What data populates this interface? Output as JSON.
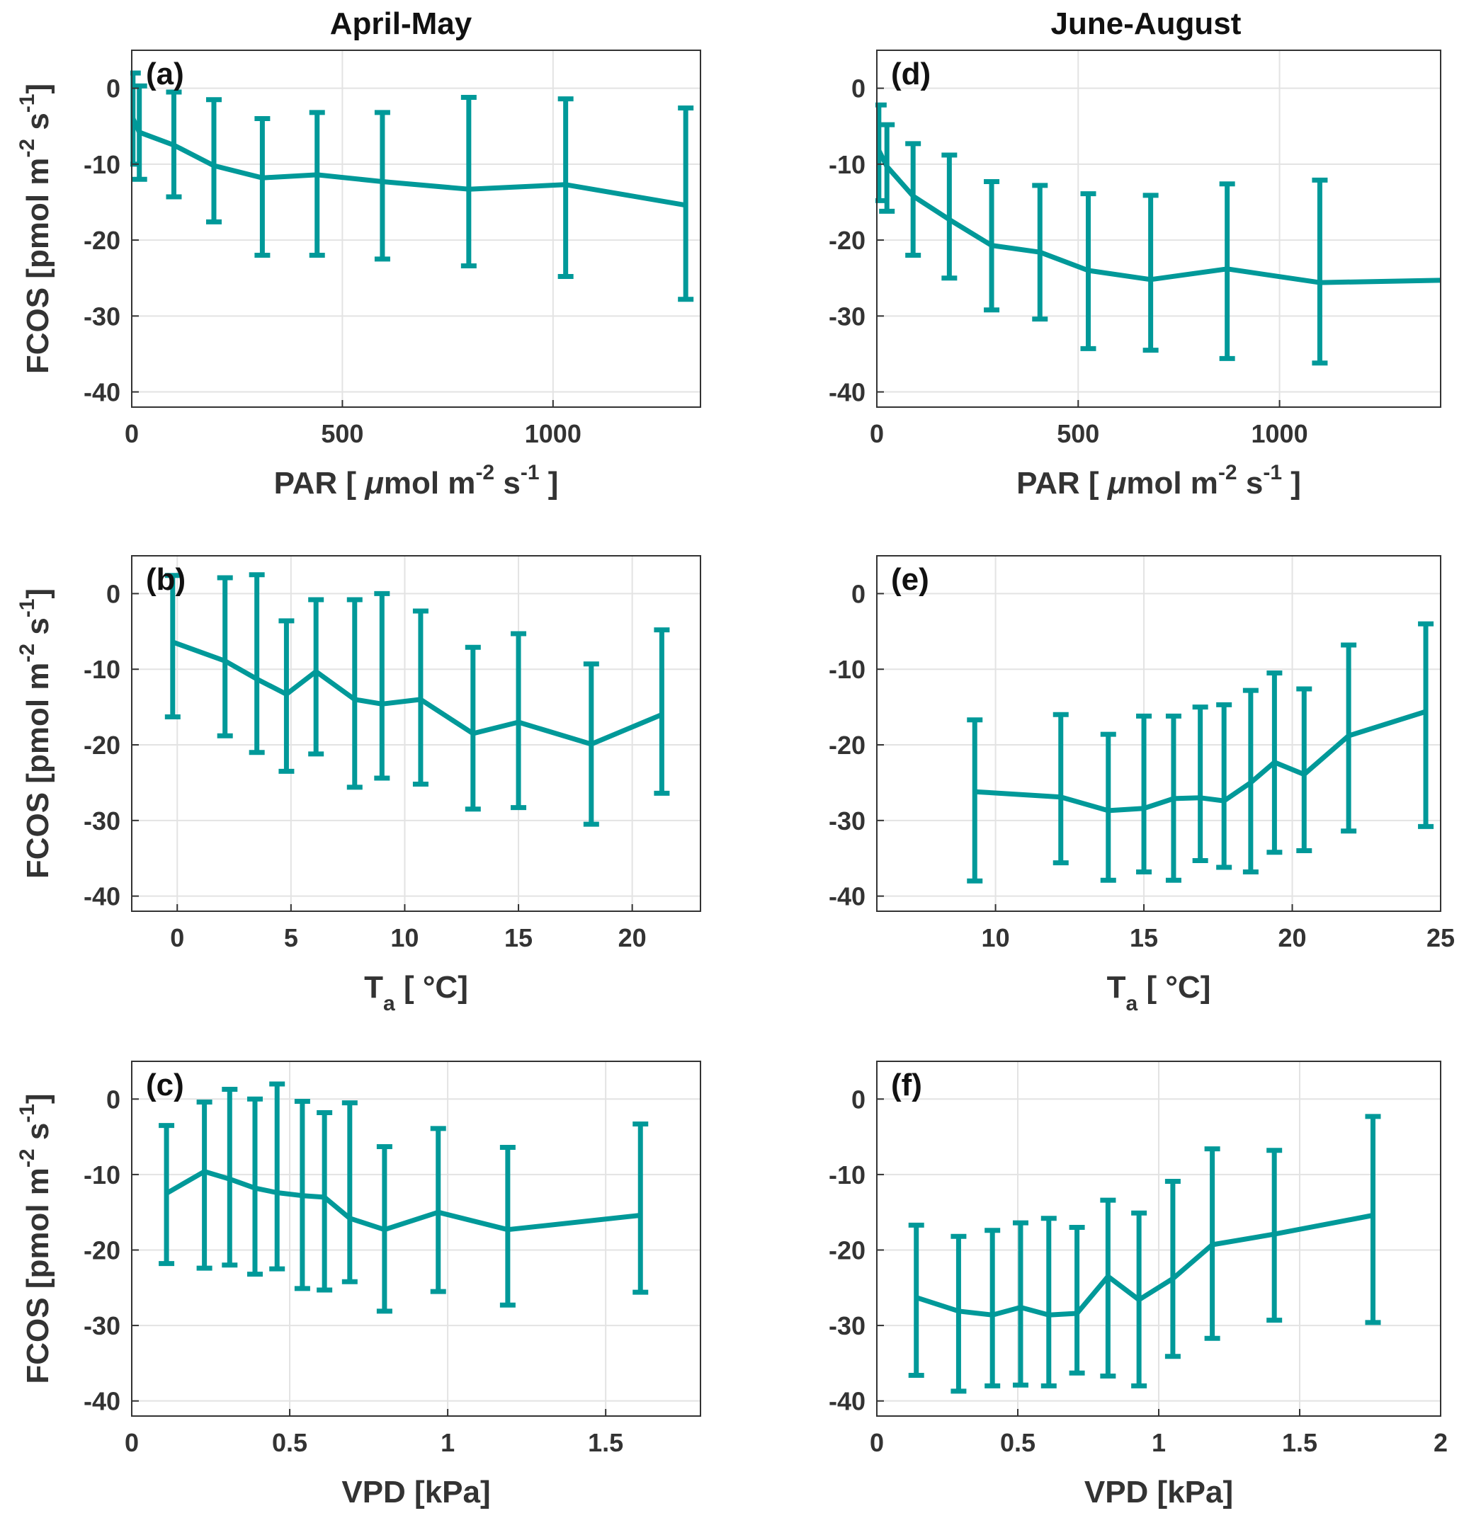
{
  "colors": {
    "series": "#009999",
    "grid": "#e3e3e3",
    "axis": "#333333",
    "text": "#333333"
  },
  "column_titles": [
    "April-May",
    "June-August"
  ],
  "chart_data": [
    {
      "panel": "(a)",
      "type": "line",
      "column": 0,
      "row": 0,
      "xlabel": {
        "pre": "PAR [ ",
        "mu": "μ",
        "main": "mol m",
        "sup1": "-2",
        "mid": " s",
        "sup2": "-1",
        "post": " ]"
      },
      "ylabel": {
        "main": "FCOS [pmol m",
        "sup1": "-2",
        "mid": " s",
        "sup2": "-1",
        "post": "]"
      },
      "xlim": [
        0,
        1350
      ],
      "ylim": [
        -42,
        5
      ],
      "xticks": [
        0,
        500,
        1000
      ],
      "xtick_labels": [
        "0",
        "500",
        "1000"
      ],
      "yticks": [
        0,
        -10,
        -20,
        -30,
        -40
      ],
      "ytick_labels": [
        "0",
        "-10",
        "-20",
        "-30",
        "-40"
      ],
      "x": [
        3,
        18,
        100,
        195,
        310,
        440,
        595,
        800,
        1030,
        1315
      ],
      "y": [
        -4,
        -5.8,
        -7.5,
        -10.2,
        -11.8,
        -11.4,
        -12.3,
        -13.3,
        -12.7,
        -15.4
      ],
      "err_low": [
        -10,
        -12,
        -14.3,
        -17.6,
        -22,
        -22,
        -22.5,
        -23.4,
        -24.8,
        -27.8
      ],
      "err_high": [
        2,
        0.3,
        -0.5,
        -1.5,
        -4,
        -3.2,
        -3.2,
        -1.2,
        -1.4,
        -2.6
      ]
    },
    {
      "panel": "(b)",
      "type": "line",
      "column": 0,
      "row": 1,
      "xlabel": {
        "main": "T",
        "sub": "a",
        "post": " [ °C]"
      },
      "ylabel": {
        "main": "FCOS [pmol m",
        "sup1": "-2",
        "mid": " s",
        "sup2": "-1",
        "post": "]"
      },
      "xlim": [
        -2,
        23
      ],
      "ylim": [
        -42,
        5
      ],
      "xticks": [
        0,
        5,
        10,
        15,
        20
      ],
      "xtick_labels": [
        "0",
        "5",
        "10",
        "15",
        "20"
      ],
      "yticks": [
        0,
        -10,
        -20,
        -30,
        -40
      ],
      "ytick_labels": [
        "0",
        "-10",
        "-20",
        "-30",
        "-40"
      ],
      "x": [
        -0.2,
        2.1,
        3.5,
        4.8,
        6.1,
        7.8,
        9,
        10.7,
        13,
        15,
        18.2,
        21.3
      ],
      "y": [
        -6.4,
        -8.9,
        -11.3,
        -13.3,
        -10.3,
        -14,
        -14.6,
        -14,
        -18.5,
        -17,
        -19.9,
        -16
      ],
      "err_low": [
        -16.3,
        -18.8,
        -21,
        -23.5,
        -21.2,
        -25.6,
        -24.4,
        -25.2,
        -28.5,
        -28.3,
        -30.5,
        -26.4
      ],
      "err_high": [
        2.4,
        2.1,
        2.5,
        -3.6,
        -0.8,
        -0.8,
        0,
        -2.3,
        -7.1,
        -5.3,
        -9.3,
        -4.8
      ]
    },
    {
      "panel": "(c)",
      "type": "line",
      "column": 0,
      "row": 2,
      "xlabel": {
        "main": "VPD [kPa]"
      },
      "ylabel": {
        "main": "FCOS [pmol m",
        "sup1": "-2",
        "mid": " s",
        "sup2": "-1",
        "post": "]"
      },
      "xlim": [
        0,
        1.8
      ],
      "ylim": [
        -42,
        5
      ],
      "xticks": [
        0,
        0.5,
        1,
        1.5
      ],
      "xtick_labels": [
        "0",
        "0.5",
        "1",
        "1.5"
      ],
      "yticks": [
        0,
        -10,
        -20,
        -30,
        -40
      ],
      "ytick_labels": [
        "0",
        "-10",
        "-20",
        "-30",
        "-40"
      ],
      "x": [
        0.11,
        0.23,
        0.31,
        0.39,
        0.46,
        0.54,
        0.61,
        0.69,
        0.8,
        0.97,
        1.19,
        1.61
      ],
      "y": [
        -12.5,
        -9.6,
        -10.6,
        -11.8,
        -12.4,
        -12.8,
        -13,
        -15.8,
        -17.3,
        -15,
        -17.3,
        -15.4
      ],
      "err_low": [
        -21.8,
        -22.4,
        -22,
        -23.2,
        -22.5,
        -25.1,
        -25.3,
        -24.2,
        -28.1,
        -25.5,
        -27.3,
        -25.6
      ],
      "err_high": [
        -3.5,
        -0.4,
        1.3,
        0,
        2,
        -0.3,
        -1.8,
        -0.5,
        -6.3,
        -3.9,
        -6.4,
        -3.3
      ]
    },
    {
      "panel": "(d)",
      "type": "line",
      "column": 1,
      "row": 0,
      "xlabel": {
        "pre": "PAR [ ",
        "mu": "μ",
        "main": "mol m",
        "sup1": "-2",
        "mid": " s",
        "sup2": "-1",
        "post": " ]"
      },
      "ylabel": null,
      "xlim": [
        0,
        1400
      ],
      "ylim": [
        -42,
        5
      ],
      "xticks": [
        0,
        500,
        1000
      ],
      "xtick_labels": [
        "0",
        "500",
        "1000"
      ],
      "yticks": [
        0,
        -10,
        -20,
        -30,
        -40
      ],
      "ytick_labels": [
        "0",
        "-10",
        "-20",
        "-30",
        "-40"
      ],
      "x": [
        5,
        25,
        90,
        180,
        285,
        405,
        525,
        680,
        870,
        1100,
        1400
      ],
      "y": [
        -8.2,
        -10.3,
        -14.2,
        -17.3,
        -20.7,
        -21.6,
        -24,
        -25.2,
        -23.8,
        -25.6,
        -25.3
      ],
      "err_low": [
        -14.8,
        -16.2,
        -22,
        -25,
        -29.2,
        -30.4,
        -34.3,
        -34.5,
        -35.6,
        -36.2,
        null
      ],
      "err_high": [
        -2.2,
        -4.8,
        -7.3,
        -8.8,
        -12.3,
        -12.8,
        -13.9,
        -14.1,
        -12.6,
        -12.1,
        null
      ]
    },
    {
      "panel": "(e)",
      "type": "line",
      "column": 1,
      "row": 1,
      "xlabel": {
        "main": "T",
        "sub": "a",
        "post": " [ °C]"
      },
      "ylabel": null,
      "xlim": [
        6,
        25
      ],
      "ylim": [
        -42,
        5
      ],
      "xticks": [
        10,
        15,
        20,
        25
      ],
      "xtick_labels": [
        "10",
        "15",
        "20",
        "25"
      ],
      "yticks": [
        0,
        -10,
        -20,
        -30,
        -40
      ],
      "ytick_labels": [
        "0",
        "-10",
        "-20",
        "-30",
        "-40"
      ],
      "x": [
        9.3,
        12.2,
        13.8,
        15,
        16,
        16.9,
        17.7,
        18.6,
        19.4,
        20.4,
        21.9,
        24.5
      ],
      "y": [
        -26.2,
        -26.9,
        -28.7,
        -28.4,
        -27.1,
        -27,
        -27.4,
        -25,
        -22.3,
        -23.9,
        -18.8,
        -15.6
      ],
      "err_low": [
        -38,
        -35.6,
        -37.9,
        -36.8,
        -37.9,
        -35.3,
        -36.2,
        -36.8,
        -34.2,
        -34,
        -31.4,
        -30.8
      ],
      "err_high": [
        -16.7,
        -16,
        -18.6,
        -16.2,
        -16.2,
        -15,
        -14.7,
        -12.8,
        -10.5,
        -12.6,
        -6.8,
        -4
      ]
    },
    {
      "panel": "(f)",
      "type": "line",
      "column": 1,
      "row": 2,
      "xlabel": {
        "main": "VPD [kPa]"
      },
      "ylabel": null,
      "xlim": [
        0,
        2
      ],
      "ylim": [
        -42,
        5
      ],
      "xticks": [
        0,
        0.5,
        1,
        1.5,
        2
      ],
      "xtick_labels": [
        "0",
        "0.5",
        "1",
        "1.5",
        "2"
      ],
      "yticks": [
        0,
        -10,
        -20,
        -30,
        -40
      ],
      "ytick_labels": [
        "0",
        "-10",
        "-20",
        "-30",
        "-40"
      ],
      "x": [
        0.14,
        0.29,
        0.41,
        0.51,
        0.61,
        0.71,
        0.82,
        0.93,
        1.05,
        1.19,
        1.41,
        1.76
      ],
      "y": [
        -26.3,
        -28.1,
        -28.6,
        -27.6,
        -28.6,
        -28.4,
        -23.5,
        -26.6,
        -23.8,
        -19.3,
        -17.9,
        -15.4
      ],
      "err_low": [
        -36.6,
        -38.7,
        -38,
        -37.9,
        -38,
        -36.3,
        -36.7,
        -38,
        -34.1,
        -31.7,
        -29.3,
        -29.6
      ],
      "err_high": [
        -16.7,
        -18.2,
        -17.4,
        -16.4,
        -15.8,
        -17,
        -13.4,
        -15.1,
        -10.9,
        -6.6,
        -6.8,
        -2.3
      ]
    }
  ]
}
